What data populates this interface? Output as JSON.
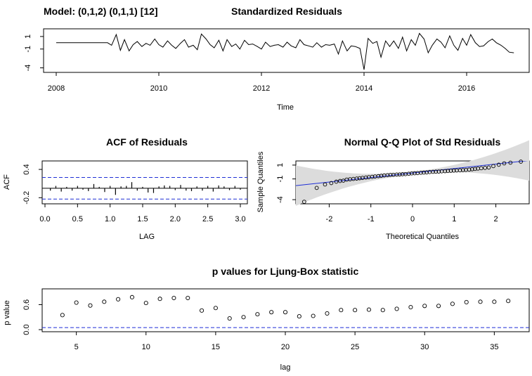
{
  "model_label": "Model: (0,1,2) (0,1,1) [12]",
  "chart_data": [
    {
      "type": "line",
      "title": "Standardized Residuals",
      "xlabel": "Time",
      "ylabel": "",
      "xlim": [
        2008,
        2017
      ],
      "ylim": [
        -4.5,
        2.0
      ],
      "xticks": [
        2008,
        2010,
        2012,
        2014,
        2016
      ],
      "yticks": [
        1,
        -1,
        -4
      ],
      "x": [
        2008.0,
        2008.25,
        2008.5,
        2008.75,
        2009.0,
        2009.08,
        2009.17,
        2009.25,
        2009.33,
        2009.42,
        2009.5,
        2009.58,
        2009.67,
        2009.75,
        2009.83,
        2009.92,
        2010.0,
        2010.08,
        2010.17,
        2010.25,
        2010.33,
        2010.42,
        2010.5,
        2010.58,
        2010.67,
        2010.75,
        2010.83,
        2010.92,
        2011.0,
        2011.08,
        2011.17,
        2011.25,
        2011.33,
        2011.42,
        2011.5,
        2011.58,
        2011.67,
        2011.75,
        2011.83,
        2011.92,
        2012.0,
        2012.08,
        2012.17,
        2012.25,
        2012.33,
        2012.42,
        2012.5,
        2012.58,
        2012.67,
        2012.75,
        2012.83,
        2012.92,
        2013.0,
        2013.08,
        2013.17,
        2013.25,
        2013.33,
        2013.42,
        2013.5,
        2013.58,
        2013.67,
        2013.75,
        2013.83,
        2013.92,
        2014.0,
        2014.08,
        2014.17,
        2014.25,
        2014.33,
        2014.42,
        2014.5,
        2014.58,
        2014.67,
        2014.75,
        2014.83,
        2014.92,
        2015.0,
        2015.08,
        2015.17,
        2015.25,
        2015.33,
        2015.42,
        2015.5,
        2015.58,
        2015.67,
        2015.75,
        2015.83,
        2015.92,
        2016.0,
        2016.08,
        2016.17,
        2016.25,
        2016.33,
        2016.42,
        2016.5,
        2016.58,
        2016.67,
        2016.75,
        2016.83,
        2016.92
      ],
      "y": [
        0.0,
        0.0,
        0.0,
        0.0,
        0.0,
        -0.4,
        1.3,
        -1.2,
        0.5,
        -1.3,
        -0.3,
        0.2,
        -0.6,
        -0.1,
        -0.4,
        0.6,
        -0.3,
        -0.7,
        0.3,
        -0.4,
        -0.9,
        -0.1,
        0.5,
        -0.7,
        -0.4,
        -1.1,
        1.4,
        0.6,
        -0.3,
        -0.8,
        0.4,
        -1.3,
        0.5,
        -0.6,
        -0.2,
        -1.0,
        0.4,
        -0.3,
        -0.2,
        -0.6,
        -1.0,
        0.1,
        -0.6,
        -0.4,
        -0.3,
        -0.7,
        0.1,
        -0.5,
        -0.8,
        0.5,
        -0.3,
        -0.5,
        -0.7,
        0.0,
        -0.7,
        -0.3,
        -0.4,
        -0.2,
        -1.8,
        0.3,
        -1.3,
        -0.5,
        -0.6,
        -0.9,
        -4.3,
        0.7,
        -0.1,
        0.2,
        -2.3,
        0.3,
        -0.6,
        0.3,
        -0.9,
        0.9,
        -1.3,
        0.5,
        -0.4,
        1.5,
        0.6,
        -1.6,
        -0.4,
        0.6,
        0.1,
        -0.8,
        1.1,
        -0.4,
        -1.2,
        0.7,
        -0.4,
        1.3,
        0.0,
        -0.6,
        -0.5,
        0.2,
        0.6,
        0.0,
        -0.4,
        -0.9,
        -1.5,
        -1.6
      ]
    },
    {
      "type": "bar",
      "title": "ACF of Residuals",
      "xlabel": "LAG",
      "ylabel": "ACF",
      "xlim": [
        0,
        3.05
      ],
      "ylim": [
        -0.3,
        0.55
      ],
      "xticks": [
        "0.0",
        "0.5",
        "1.0",
        "1.5",
        "2.0",
        "2.5",
        "3.0"
      ],
      "yticks": [
        "0.4",
        "-0.2"
      ],
      "conf_band": 0.23,
      "lags": [
        0.083,
        0.167,
        0.25,
        0.333,
        0.417,
        0.5,
        0.583,
        0.667,
        0.75,
        0.833,
        0.917,
        1.0,
        1.083,
        1.167,
        1.25,
        1.333,
        1.417,
        1.5,
        1.583,
        1.667,
        1.75,
        1.833,
        1.917,
        2.0,
        2.083,
        2.167,
        2.25,
        2.333,
        2.417,
        2.5,
        2.583,
        2.667,
        2.75,
        2.833,
        2.917,
        3.0
      ],
      "values": [
        -0.05,
        0.05,
        -0.07,
        0.03,
        -0.05,
        0.05,
        -0.03,
        -0.06,
        0.09,
        0.03,
        -0.08,
        0.05,
        -0.14,
        0.04,
        0.05,
        0.13,
        -0.05,
        0.03,
        -0.09,
        -0.1,
        0.04,
        0.06,
        0.05,
        -0.04,
        0.07,
        -0.05,
        -0.06,
        0.04,
        -0.05,
        0.05,
        -0.07,
        0.06,
        0.04,
        -0.04,
        0.05,
        -0.03
      ]
    },
    {
      "type": "scatter",
      "title": "Normal Q-Q Plot of Std Residuals",
      "xlabel": "Theoretical Quantiles",
      "ylabel": "Sample Quantiles",
      "xlim": [
        -2.8,
        2.8
      ],
      "ylim": [
        -4.6,
        1.6
      ],
      "xticks": [
        "-2",
        "-1",
        "0",
        "1",
        "2"
      ],
      "yticks": [
        "1",
        "-1",
        "-4"
      ],
      "ref_line": {
        "intercept": -0.15,
        "slope": 0.65
      },
      "x": [
        -2.6,
        -2.3,
        -2.1,
        -1.95,
        -1.83,
        -1.74,
        -1.66,
        -1.58,
        -1.5,
        -1.42,
        -1.34,
        -1.27,
        -1.2,
        -1.12,
        -1.05,
        -0.97,
        -0.9,
        -0.82,
        -0.75,
        -0.68,
        -0.6,
        -0.53,
        -0.46,
        -0.38,
        -0.31,
        -0.24,
        -0.17,
        -0.09,
        -0.02,
        0.05,
        0.12,
        0.2,
        0.27,
        0.34,
        0.41,
        0.49,
        0.56,
        0.63,
        0.7,
        0.78,
        0.85,
        0.92,
        0.99,
        1.06,
        1.14,
        1.21,
        1.28,
        1.36,
        1.43,
        1.5,
        1.57,
        1.65,
        1.74,
        1.83,
        1.94,
        2.07,
        2.2,
        2.35,
        2.6
      ],
      "y": [
        -4.3,
        -2.3,
        -1.8,
        -1.6,
        -1.4,
        -1.3,
        -1.25,
        -1.1,
        -1.05,
        -1.0,
        -0.95,
        -0.9,
        -0.85,
        -0.8,
        -0.75,
        -0.7,
        -0.65,
        -0.6,
        -0.55,
        -0.5,
        -0.45,
        -0.42,
        -0.4,
        -0.37,
        -0.35,
        -0.32,
        -0.3,
        -0.25,
        -0.2,
        -0.18,
        -0.15,
        -0.1,
        -0.08,
        -0.05,
        0.0,
        0.03,
        0.05,
        0.07,
        0.1,
        0.12,
        0.15,
        0.18,
        0.2,
        0.23,
        0.25,
        0.28,
        0.3,
        0.35,
        0.4,
        0.45,
        0.5,
        0.55,
        0.6,
        0.65,
        0.85,
        1.05,
        1.25,
        1.35,
        1.5
      ]
    },
    {
      "type": "scatter",
      "title": "p values for Ljung-Box statistic",
      "xlabel": "lag",
      "ylabel": "p value",
      "xlim": [
        3,
        37
      ],
      "ylim": [
        -0.05,
        0.98
      ],
      "xticks": [
        "5",
        "10",
        "15",
        "20",
        "25",
        "30",
        "35"
      ],
      "yticks": [
        "0.6",
        "0.0"
      ],
      "threshold": 0.05,
      "x": [
        4,
        5,
        6,
        7,
        8,
        9,
        10,
        11,
        12,
        13,
        14,
        15,
        16,
        17,
        18,
        19,
        20,
        21,
        22,
        23,
        24,
        25,
        26,
        27,
        28,
        29,
        30,
        31,
        32,
        33,
        34,
        35,
        36
      ],
      "y": [
        0.35,
        0.65,
        0.58,
        0.67,
        0.73,
        0.78,
        0.64,
        0.74,
        0.76,
        0.76,
        0.46,
        0.52,
        0.27,
        0.3,
        0.37,
        0.42,
        0.42,
        0.32,
        0.33,
        0.39,
        0.47,
        0.47,
        0.48,
        0.47,
        0.5,
        0.54,
        0.57,
        0.57,
        0.62,
        0.66,
        0.67,
        0.67,
        0.69
      ]
    }
  ]
}
